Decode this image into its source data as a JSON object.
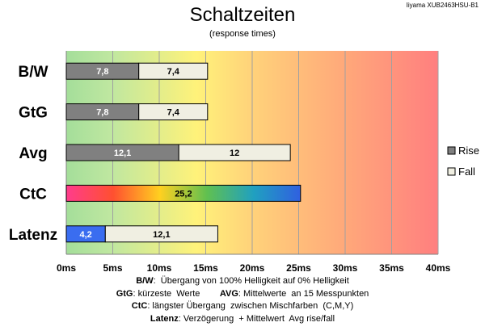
{
  "header": {
    "title": "Schaltzeiten",
    "subtitle": "(response times)",
    "model": "Iiyama XUB2463HSU-B1"
  },
  "chart_data": {
    "type": "bar",
    "orientation": "horizontal",
    "stacked": true,
    "categories": [
      "B/W",
      "GtG",
      "Avg",
      "CtC",
      "Latenz"
    ],
    "series": [
      {
        "name": "Rise",
        "values": [
          7.8,
          7.8,
          12.1,
          25.2,
          4.2
        ],
        "labels": [
          "7,8",
          "7,8",
          "12,1",
          "25,2",
          "4,2"
        ],
        "color": "#808080"
      },
      {
        "name": "Fall",
        "values": [
          7.4,
          7.4,
          12.0,
          0,
          12.1
        ],
        "labels": [
          "7,4",
          "7,4",
          "12",
          "",
          "12,1"
        ],
        "color": "#f0efe2"
      }
    ],
    "special_bars": {
      "CtC": "rainbow gradient",
      "Latenz": "blue rise segment"
    },
    "xlim": [
      0,
      40
    ],
    "xticks": [
      "0ms",
      "5ms",
      "10ms",
      "15ms",
      "20ms",
      "25ms",
      "30ms",
      "35ms",
      "40ms"
    ],
    "xtick_values": [
      0,
      5,
      10,
      15,
      20,
      25,
      30,
      35,
      40
    ],
    "grid": true,
    "legend_position": "right",
    "background": "gradient green to yellow to red"
  },
  "notes": [
    [
      {
        "b": "B/W"
      },
      {
        "t": ":  Übergang von 100% Helligkeit auf 0% Helligkeit"
      }
    ],
    [
      {
        "b": "GtG"
      },
      {
        "t": ": kürzeste  Werte        "
      },
      {
        "b": "AVG"
      },
      {
        "t": ": Mittelwerte  an 15 Messpunkten"
      }
    ],
    [
      {
        "b": "CtC"
      },
      {
        "t": ": längster Übergang  zwischen Mischfarben  (C,M,Y)"
      }
    ],
    [
      {
        "b": "Latenz"
      },
      {
        "t": ": Verzögerung  + Mittelwert  Avg rise/fall"
      }
    ]
  ]
}
